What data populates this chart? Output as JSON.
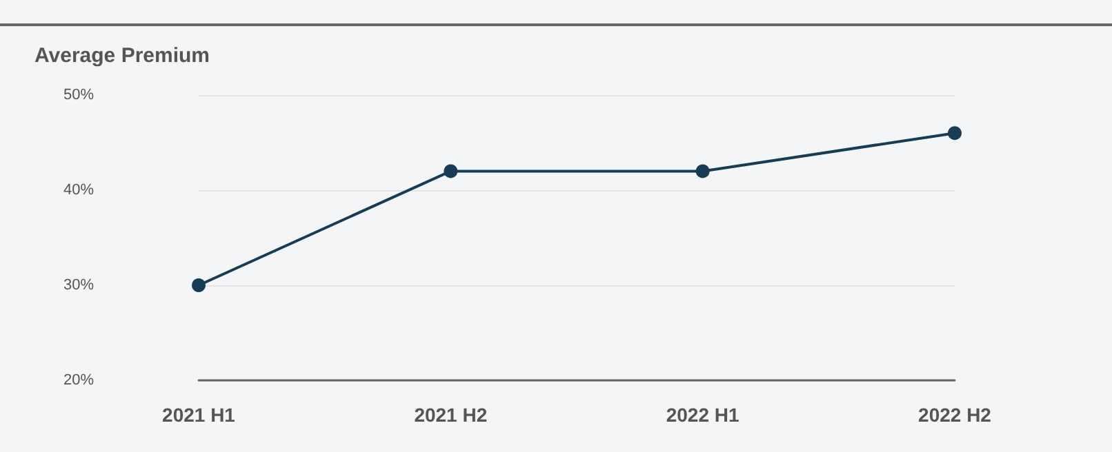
{
  "chart_data": {
    "type": "line",
    "title": "Average Premium",
    "categories": [
      "2021 H1",
      "2021 H2",
      "2022 H1",
      "2022 H2"
    ],
    "series": [
      {
        "color": "#163d55",
        "values": [
          30,
          42,
          42,
          46
        ]
      }
    ],
    "ylim": [
      20,
      50
    ],
    "yticks": [
      {
        "value": 20,
        "label": "20%"
      },
      {
        "value": 30,
        "label": "30%"
      },
      {
        "value": 40,
        "label": "40%"
      },
      {
        "value": 50,
        "label": "50%"
      }
    ],
    "grid": "y",
    "marker": "circle",
    "line_style": "solid"
  }
}
